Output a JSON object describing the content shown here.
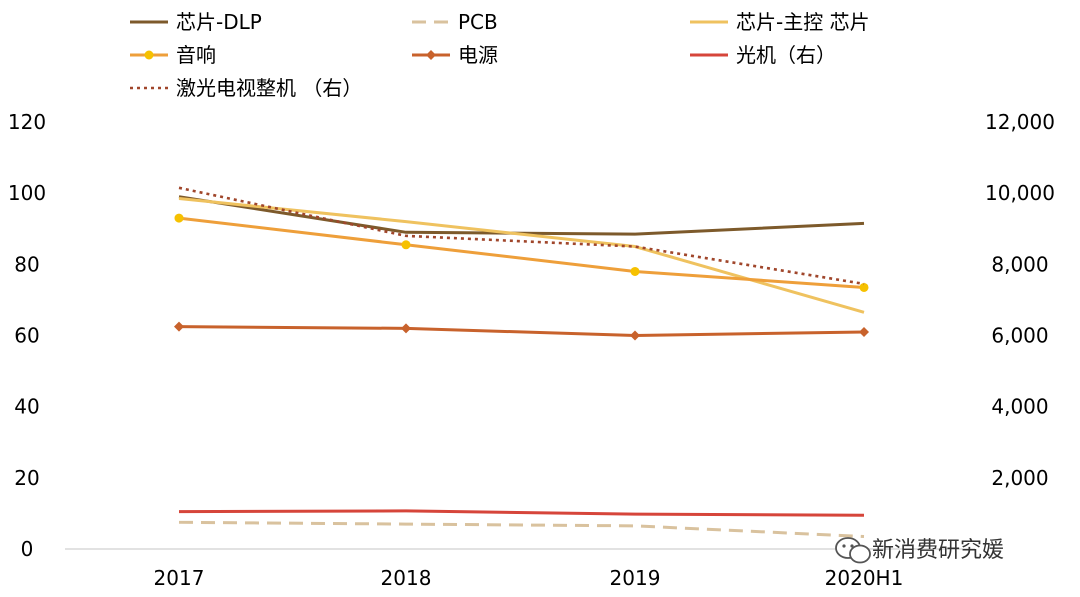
{
  "chart_data": {
    "type": "line",
    "categories": [
      "2017",
      "2018",
      "2019",
      "2020H1"
    ],
    "y_left": {
      "ylim": [
        0,
        120
      ],
      "ticks": [
        "0",
        "20",
        "40",
        "60",
        "80",
        "100",
        "120"
      ]
    },
    "y_right": {
      "ylim": [
        0,
        12000
      ],
      "ticks": [
        "2,000",
        "4,000",
        "6,000",
        "8,000",
        "10,000",
        "12,000"
      ]
    },
    "series": [
      {
        "name": "芯片-DLP",
        "axis": "left",
        "values": [
          99,
          89,
          88.5,
          91.5
        ],
        "color": "#7d5a2b",
        "style": "solid",
        "marker": "none"
      },
      {
        "name": "PCB",
        "axis": "left",
        "values": [
          7.5,
          7,
          6.5,
          3.5
        ],
        "color": "#d9c29e",
        "style": "dashed",
        "marker": "none"
      },
      {
        "name": "芯片-主控 芯片",
        "axis": "left",
        "values": [
          98.5,
          92,
          85,
          66.5
        ],
        "color": "#efc25f",
        "style": "solid",
        "marker": "none"
      },
      {
        "name": "音响",
        "axis": "left",
        "values": [
          93,
          85.5,
          78,
          73.5
        ],
        "color": "#ee9f3a",
        "style": "solid",
        "marker": "circle",
        "marker_color": "#f6c100"
      },
      {
        "name": "电源",
        "axis": "left",
        "values": [
          62.5,
          62,
          60,
          61
        ],
        "color": "#c8622c",
        "style": "solid",
        "marker": "diamond"
      },
      {
        "name": "光机（右）",
        "axis": "right",
        "values": [
          1050,
          1070,
          980,
          950
        ],
        "color": "#d6453a",
        "style": "solid",
        "marker": "none"
      },
      {
        "name": "激光电视整机 （右）",
        "axis": "right",
        "values": [
          10150,
          8800,
          8500,
          7450
        ],
        "color": "#a0462b",
        "style": "dotted",
        "marker": "none"
      }
    ]
  },
  "watermark": {
    "text": "新消费研究媛",
    "icon": "wechat-icon"
  }
}
